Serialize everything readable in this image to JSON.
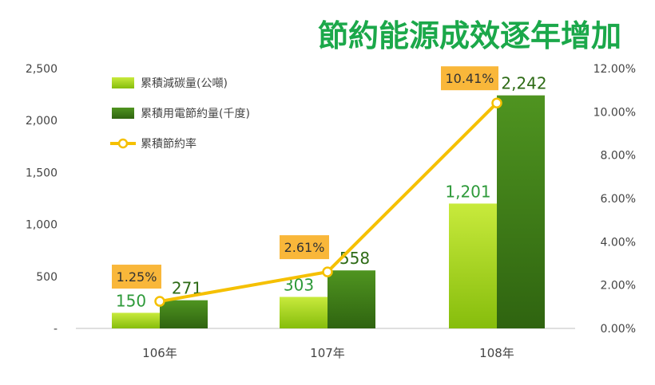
{
  "chart_data": {
    "type": "bar",
    "title": "節約能源成效逐年增加",
    "categories": [
      "106年",
      "107年",
      "108年"
    ],
    "series": [
      {
        "name": "累積減碳量(公噸)",
        "values": [
          150,
          303,
          1201
        ],
        "labels": [
          "150",
          "303",
          "1,201"
        ],
        "color": "#9ccc13"
      },
      {
        "name": "累積用電節約量(千度)",
        "values": [
          271,
          558,
          2242
        ],
        "labels": [
          "271",
          "558",
          "2,242"
        ],
        "color": "#3f7a14"
      }
    ],
    "line_series": {
      "name": "累積節約率",
      "values": [
        1.25,
        2.61,
        10.41
      ],
      "labels": [
        "1.25%",
        "2.61%",
        "10.41%"
      ],
      "color": "#f5c000",
      "axis": "right"
    },
    "y_left": {
      "ylim": [
        0,
        2500
      ],
      "ticks": [
        0,
        500,
        1000,
        1500,
        2000,
        2500
      ],
      "tick_labels": [
        "-",
        "500",
        "1,000",
        "1,500",
        "2,000",
        "2,500"
      ]
    },
    "y_right": {
      "ylim": [
        0,
        12
      ],
      "ticks": [
        0,
        2,
        4,
        6,
        8,
        10,
        12
      ],
      "tick_labels": [
        "0.00%",
        "2.00%",
        "4.00%",
        "6.00%",
        "8.00%",
        "10.00%",
        "12.00%"
      ]
    },
    "legend_position": "top-left",
    "grid": false
  }
}
